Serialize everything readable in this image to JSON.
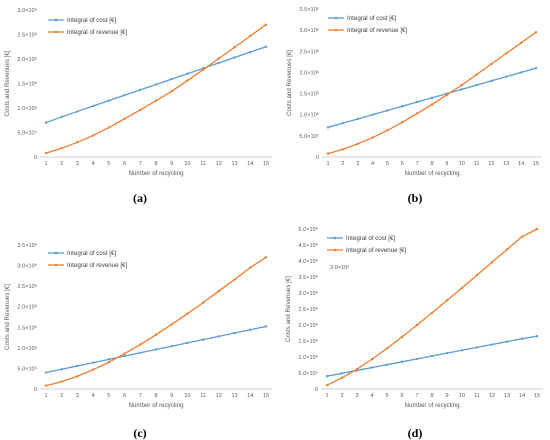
{
  "chart_data": [
    {
      "type": "line",
      "panel": "(a)",
      "x": [
        1,
        2,
        3,
        4,
        5,
        6,
        7,
        8,
        9,
        10,
        11,
        12,
        13,
        14,
        15
      ],
      "ylim": [
        0,
        3000000
      ],
      "yticks": [
        0,
        500000,
        1000000,
        1500000,
        2000000,
        2500000,
        3000000
      ],
      "ytick_labels": [
        "0",
        "5.0×10⁵",
        "1.0×10⁶",
        "1.5×10⁶",
        "2.0×10⁶",
        "2.5×10⁶",
        "3.0×10⁶"
      ],
      "xlabel": "Number of recycling",
      "ylabel": "Costs and Revenues [€]",
      "legend_position": "top-left",
      "grid": false,
      "series": [
        {
          "name": "Integral of cost [€]",
          "color": "#5b9bd5",
          "values": [
            700000,
            820000,
            930000,
            1040000,
            1150000,
            1260000,
            1370000,
            1480000,
            1590000,
            1700000,
            1810000,
            1920000,
            2030000,
            2140000,
            2250000
          ]
        },
        {
          "name": "Integral of revenue [€]",
          "color": "#ed7d31",
          "values": [
            80000,
            180000,
            300000,
            440000,
            600000,
            780000,
            960000,
            1150000,
            1340000,
            1560000,
            1780000,
            2010000,
            2240000,
            2470000,
            2700000
          ]
        }
      ]
    },
    {
      "type": "line",
      "panel": "(b)",
      "x": [
        1,
        2,
        3,
        4,
        5,
        6,
        7,
        8,
        9,
        10,
        11,
        12,
        13,
        14,
        15
      ],
      "ylim": [
        0,
        3500000
      ],
      "yticks": [
        0,
        500000,
        1000000,
        1500000,
        2000000,
        2500000,
        3000000,
        3500000
      ],
      "ytick_labels": [
        "0",
        "5.0×10⁵",
        "1.0×10⁶",
        "1.5×10⁶",
        "2.0×10⁶",
        "2.5×10⁶",
        "3.0×10⁶",
        "3.5×10⁶"
      ],
      "xlabel": "Number of recycling",
      "ylabel": "Costs and Revenues [€]",
      "legend_position": "top-left",
      "grid": false,
      "series": [
        {
          "name": "Integral of cost [€]",
          "color": "#5b9bd5",
          "values": [
            700000,
            800000,
            900000,
            1000000,
            1100000,
            1200000,
            1300000,
            1400000,
            1500000,
            1600000,
            1700000,
            1800000,
            1900000,
            2000000,
            2100000
          ]
        },
        {
          "name": "Integral of revenue [€]",
          "color": "#ed7d31",
          "values": [
            80000,
            180000,
            310000,
            460000,
            630000,
            820000,
            1030000,
            1240000,
            1470000,
            1700000,
            1950000,
            2200000,
            2450000,
            2700000,
            2950000
          ]
        }
      ]
    },
    {
      "type": "line",
      "panel": "(c)",
      "x": [
        1,
        2,
        3,
        4,
        5,
        6,
        7,
        8,
        9,
        10,
        11,
        12,
        13,
        14,
        15
      ],
      "ylim": [
        0,
        3500000
      ],
      "yticks": [
        0,
        500000,
        1000000,
        1500000,
        2000000,
        2500000,
        3000000,
        3500000
      ],
      "ytick_labels": [
        "0",
        "5.0×10⁵",
        "1.0×10⁶",
        "1.5×10⁶",
        "2.0×10⁶",
        "2.5×10⁶",
        "3.0×10⁶",
        "3.5×10⁶"
      ],
      "xlabel": "Number of recycling",
      "ylabel": "Costs and Revenues [€]",
      "legend_position": "top-left",
      "grid": false,
      "series": [
        {
          "name": "Integral of cost [€]",
          "color": "#5b9bd5",
          "values": [
            400000,
            480000,
            560000,
            640000,
            720000,
            800000,
            880000,
            960000,
            1040000,
            1120000,
            1200000,
            1280000,
            1360000,
            1440000,
            1520000
          ]
        },
        {
          "name": "Integral of revenue [€]",
          "color": "#ed7d31",
          "values": [
            80000,
            180000,
            310000,
            470000,
            650000,
            860000,
            1080000,
            1320000,
            1570000,
            1830000,
            2100000,
            2380000,
            2660000,
            2950000,
            3200000
          ]
        }
      ]
    },
    {
      "type": "line",
      "panel": "(d)",
      "x": [
        1,
        2,
        3,
        4,
        5,
        6,
        7,
        8,
        9,
        10,
        11,
        12,
        13,
        14,
        15
      ],
      "ylim": [
        0,
        5000000
      ],
      "yticks": [
        0,
        500000,
        1000000,
        1500000,
        2000000,
        2500000,
        3000000,
        3500000,
        4000000,
        4500000,
        5000000
      ],
      "ytick_labels": [
        "0",
        "5.0×10⁵",
        "1.0×10⁶",
        "1.5×10⁶",
        "2.0×10⁶",
        "2.5×10⁶",
        "3.0×10⁶",
        "3.5×10⁶",
        "4.0×10⁶",
        "4.5×10⁶",
        "5.0×10⁶"
      ],
      "xlabel": "Number of recycling",
      "ylabel": "Costs and Revenues [€]",
      "legend_position": "top-left",
      "annotation": "3.0×10⁶",
      "grid": false,
      "series": [
        {
          "name": "Integral of cost [€]",
          "color": "#5b9bd5",
          "values": [
            400000,
            490000,
            580000,
            670000,
            760000,
            850000,
            940000,
            1030000,
            1120000,
            1210000,
            1300000,
            1390000,
            1480000,
            1570000,
            1650000
          ]
        },
        {
          "name": "Integral of revenue [€]",
          "color": "#ed7d31",
          "values": [
            120000,
            350000,
            620000,
            930000,
            1270000,
            1630000,
            2000000,
            2380000,
            2770000,
            3160000,
            3560000,
            3960000,
            4360000,
            4760000,
            5000000
          ]
        }
      ]
    }
  ],
  "panels": [
    "(a)",
    "(b)",
    "(c)",
    "(d)"
  ]
}
